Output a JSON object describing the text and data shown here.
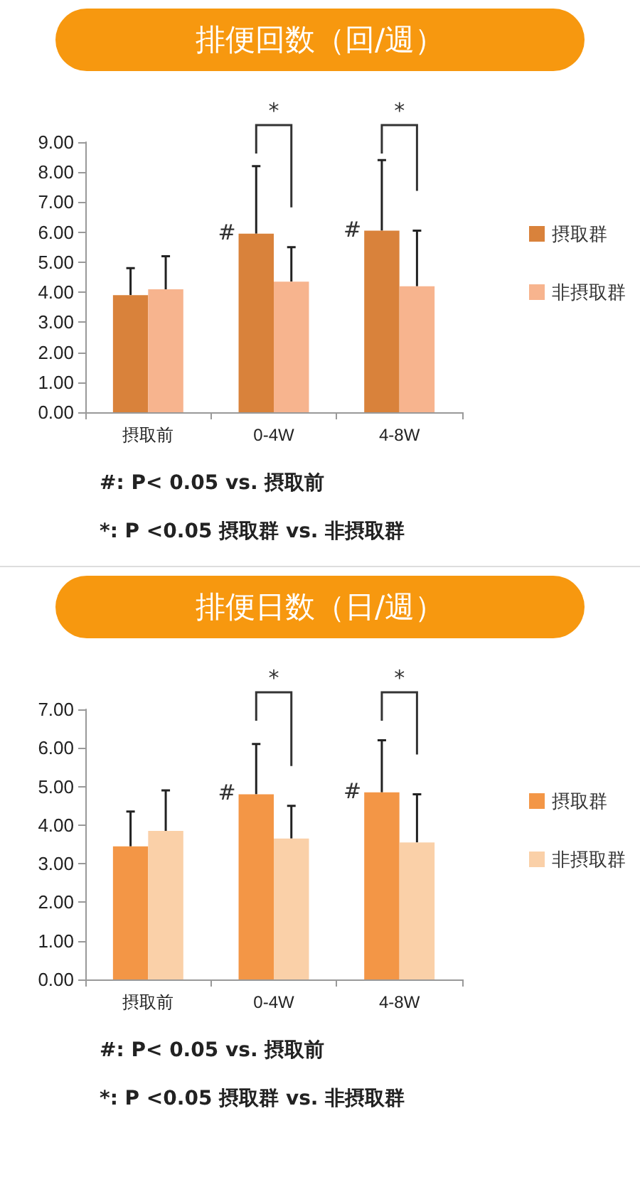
{
  "chart_data": [
    {
      "type": "bar",
      "title": "排便回数（回/週）",
      "categories": [
        "摂取前",
        "0-4W",
        "4-8W"
      ],
      "series": [
        {
          "name": "摂取群",
          "color": "#d9823b",
          "values": [
            3.9,
            5.95,
            6.05
          ],
          "errors": [
            [
              3.9,
              4.8
            ],
            [
              5.95,
              8.2
            ],
            [
              6.05,
              8.4
            ]
          ]
        },
        {
          "name": "非摂取群",
          "color": "#f7b48e",
          "values": [
            4.1,
            4.35,
            4.2
          ],
          "errors": [
            [
              4.1,
              5.2
            ],
            [
              4.35,
              5.5
            ],
            [
              4.2,
              6.05
            ]
          ]
        }
      ],
      "ylim": [
        0,
        9
      ],
      "yticks": [
        {
          "value": 0,
          "label": "0.00"
        },
        {
          "value": 1,
          "label": "1.00"
        },
        {
          "value": 2,
          "label": "2.00"
        },
        {
          "value": 3,
          "label": "3.00"
        },
        {
          "value": 4,
          "label": "4.00"
        },
        {
          "value": 5,
          "label": "5.00"
        },
        {
          "value": 6,
          "label": "6.00"
        },
        {
          "value": 7,
          "label": "7.00"
        },
        {
          "value": 8,
          "label": "8.00"
        },
        {
          "value": 9,
          "label": "9.00"
        }
      ],
      "grid": false,
      "legend": "right",
      "annotations": [
        {
          "text": "#",
          "x": "0-4W",
          "y": 5.95
        },
        {
          "text": "#",
          "x": "4-8W",
          "y": 6.05
        },
        "*",
        "*",
        "#: P< 0.05 vs. 摂取前",
        "*: P <0.05 摂取群 vs. 非摂取群"
      ]
    },
    {
      "type": "bar",
      "title": "排便日数（日/週）",
      "categories": [
        "摂取前",
        "0-4W",
        "4-8W"
      ],
      "series": [
        {
          "name": "摂取群",
          "color": "#f39646",
          "values": [
            3.45,
            4.8,
            4.85
          ],
          "errors": [
            [
              3.45,
              4.35
            ],
            [
              4.8,
              6.1
            ],
            [
              4.85,
              6.2
            ]
          ]
        },
        {
          "name": "非摂取群",
          "color": "#fad0a8",
          "values": [
            3.85,
            3.65,
            3.55
          ],
          "errors": [
            [
              3.85,
              4.9
            ],
            [
              3.65,
              4.5
            ],
            [
              3.55,
              4.8
            ]
          ]
        }
      ],
      "ylim": [
        0,
        7
      ],
      "yticks": [
        {
          "value": 0,
          "label": "0.00"
        },
        {
          "value": 1,
          "label": "1.00"
        },
        {
          "value": 2,
          "label": "2.00"
        },
        {
          "value": 3,
          "label": "3.00"
        },
        {
          "value": 4,
          "label": "4.00"
        },
        {
          "value": 5,
          "label": "5.00"
        },
        {
          "value": 6,
          "label": "6.00"
        },
        {
          "value": 7,
          "label": "7.00"
        }
      ],
      "grid": false,
      "legend": "right",
      "annotations": [
        {
          "text": "#",
          "x": "0-4W",
          "y": 4.8
        },
        {
          "text": "#",
          "x": "4-8W",
          "y": 4.85
        },
        "*",
        "*",
        "#: P< 0.05 vs. 摂取前",
        "*: P <0.05 摂取群 vs. 非摂取群"
      ]
    }
  ]
}
